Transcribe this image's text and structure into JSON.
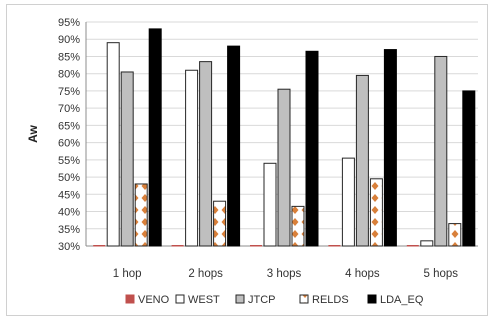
{
  "chart_data": {
    "type": "bar",
    "title": "",
    "xlabel": "",
    "ylabel": "Aw",
    "ylim": [
      30,
      95
    ],
    "ytick_step": 5,
    "ytick_suffix": "%",
    "grid": "horizontal",
    "legend_position": "bottom",
    "categories": [
      "1 hop",
      "2 hops",
      "3 hops",
      "4 hops",
      "5 hops"
    ],
    "series": [
      {
        "name": "VENO",
        "values": [
          30,
          30,
          30,
          30,
          30
        ],
        "color": "#c0504d",
        "pattern": "solid"
      },
      {
        "name": "WEST",
        "values": [
          89,
          81,
          54,
          55.5,
          31.5
        ],
        "color": "#ffffff",
        "pattern": "solid"
      },
      {
        "name": "JTCP",
        "values": [
          80.5,
          83.5,
          75.5,
          79.5,
          85
        ],
        "color": "#bfbfbf",
        "pattern": "solid"
      },
      {
        "name": "RELDS",
        "values": [
          48,
          43,
          41.5,
          49.5,
          36.5
        ],
        "color": "#ffffff",
        "pattern": "diamond",
        "pattern_color": "#d9803a"
      },
      {
        "name": "LDA_EQ",
        "values": [
          93,
          88,
          86.5,
          87,
          75
        ],
        "color": "#000000",
        "pattern": "solid"
      }
    ]
  }
}
